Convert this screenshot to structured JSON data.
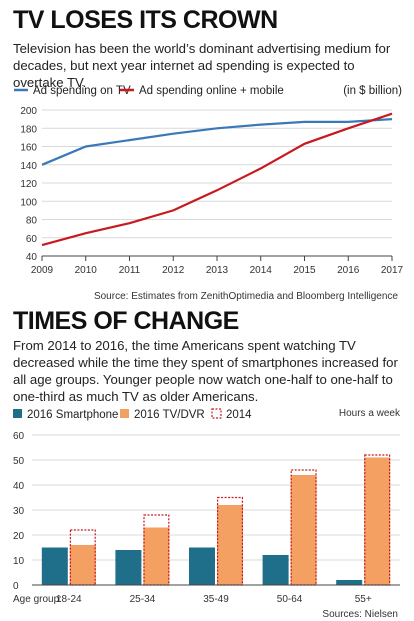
{
  "section1": {
    "title": "TV LOSES ITS CROWN",
    "description": "Television has been the world’s dominant advertising medium for decades, but next year internet ad spending is expected to overtake TV.",
    "unit_label": "(in $ billion)",
    "source": "Source: Estimates from ZenithOptimedia and Bloomberg Intelligence"
  },
  "section2": {
    "title": "TIMES OF CHANGE",
    "description": "From 2014 to 2016, the time Americans spent watching TV decreased while the time they spent of smartphones increased for all age groups. Younger people now watch one-half to one-half to one-third as much TV as older Americans.",
    "unit_label": "Hours a week",
    "age_group_label": "Age group:",
    "source": "Sources: Nielsen"
  },
  "colors": {
    "tv_line": "#3a78b8",
    "online_line": "#c8191e",
    "smartphone": "#1f6f8b",
    "tv_dvr": "#f4a063",
    "dotted_2014": "#c8191e"
  },
  "chart_data": [
    {
      "type": "line",
      "title": "TV LOSES ITS CROWN",
      "x": [
        2009,
        2010,
        2011,
        2012,
        2013,
        2014,
        2015,
        2016,
        2017
      ],
      "series": [
        {
          "name": "Ad spending on TV",
          "values": [
            140,
            160,
            167,
            174,
            180,
            184,
            187,
            187,
            190
          ]
        },
        {
          "name": "Ad spending online + mobile",
          "values": [
            52,
            65,
            76,
            90,
            112,
            136,
            163,
            180,
            196
          ]
        }
      ],
      "ylim": [
        40,
        200
      ],
      "yticks": [
        40,
        60,
        80,
        100,
        120,
        140,
        160,
        180,
        200
      ],
      "grid": true,
      "legend": "top-left"
    },
    {
      "type": "bar",
      "title": "TIMES OF CHANGE",
      "categories": [
        "18-24",
        "25-34",
        "35-49",
        "50-64",
        "55+"
      ],
      "series": [
        {
          "name": "2016 Smartphone",
          "values": [
            15,
            14,
            15,
            12,
            2
          ]
        },
        {
          "name": "2016 TV/DVR",
          "values": [
            16,
            23,
            32,
            44,
            51
          ]
        },
        {
          "name": "2014",
          "values": [
            22,
            28,
            35,
            46,
            52
          ]
        }
      ],
      "ylim": [
        0,
        60
      ],
      "yticks": [
        0,
        10,
        20,
        30,
        40,
        50,
        60
      ],
      "grid": true,
      "legend": "top-left"
    }
  ]
}
